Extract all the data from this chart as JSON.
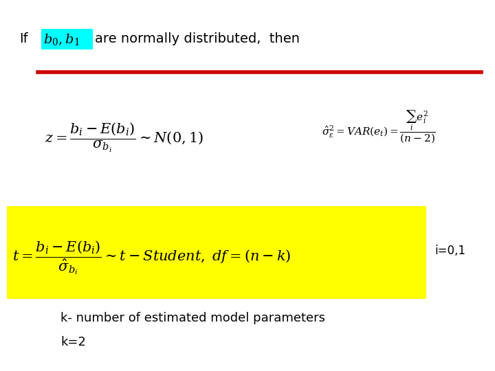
{
  "bg_color": "#ffffff",
  "highlight_color": "#00ffff",
  "yellow_box_color": "#ffff00",
  "red_line_color": "#cc0000",
  "text_color": "#000000",
  "if_text": "If",
  "b01_formula": "$b_0, b_1$",
  "normal_text": "are normally distributed,  then",
  "z_formula": "$z = \\dfrac{b_i - E(b_i)}{\\sigma_{b_i}} \\sim N(0,1)$",
  "sigma_formula": "$\\hat{\\sigma}^2_{\\varepsilon} = VAR(e_t) = \\dfrac{\\sum_i e^2_i}{(n-2)}$",
  "t_formula": "$t = \\dfrac{b_i - E(b_i)}{\\hat{\\sigma}_{b_i}} \\sim t - Student,\\ df = (n-k)$",
  "i_label": "i=0,1",
  "k_note": "k- number of estimated model parameters",
  "k_val": "k=2",
  "fig_width": 7.2,
  "fig_height": 5.4,
  "dpi": 100
}
